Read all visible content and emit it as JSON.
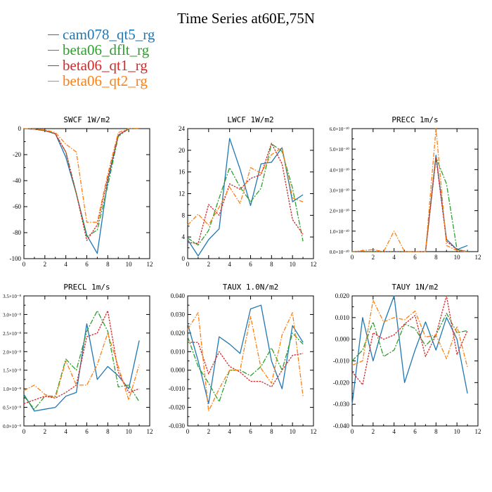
{
  "title": "Time Series at60E,75N",
  "colors": {
    "blue": "#1f77b4",
    "green": "#2ca02c",
    "red": "#d62728",
    "orange": "#ff7f0e"
  },
  "legend": [
    {
      "label": "cam078_qt5_rg",
      "color": "#1f77b4"
    },
    {
      "label": "beta06_dflt_rg",
      "color": "#2ca02c"
    },
    {
      "label": "beta06_qt1_rg",
      "color": "#d62728"
    },
    {
      "label": "beta06_qt2_rg",
      "color": "#ff7f0e"
    }
  ],
  "chart_data": [
    {
      "type": "line",
      "title": "SWCF   1W/m2",
      "x": [
        0,
        1,
        2,
        3,
        4,
        5,
        6,
        7,
        8,
        9,
        10,
        11
      ],
      "xlim": [
        0,
        12
      ],
      "ylim": [
        -100,
        0
      ],
      "xticks": [
        "0",
        "2",
        "4",
        "6",
        "8",
        "10",
        "12"
      ],
      "yticks": [
        "-100",
        "-80",
        "-60",
        "-40",
        "-20",
        "0"
      ],
      "series": [
        {
          "name": "cam078_qt5_rg",
          "values": [
            0,
            -0.5,
            -1.5,
            -4,
            -22,
            -50,
            -82,
            -96,
            -40,
            -5,
            0,
            0
          ]
        },
        {
          "name": "beta06_dflt_rg",
          "values": [
            0,
            -0.5,
            -1.5,
            -4,
            -18,
            -50,
            -83,
            -78,
            -44,
            -6,
            0,
            0
          ]
        },
        {
          "name": "beta06_qt1_rg",
          "values": [
            0,
            -0.5,
            -1.5,
            -4,
            -18,
            -50,
            -86,
            -74,
            -38,
            -5,
            0,
            0
          ]
        },
        {
          "name": "beta06_qt2_rg",
          "values": [
            0,
            -0.3,
            -1,
            -3,
            -12,
            -18,
            -72,
            -72,
            -35,
            -3,
            0,
            0
          ]
        }
      ]
    },
    {
      "type": "line",
      "title": "LWCF   1W/m2",
      "x": [
        0,
        1,
        2,
        3,
        4,
        5,
        6,
        7,
        8,
        9,
        10,
        11
      ],
      "xlim": [
        0,
        12
      ],
      "ylim": [
        0,
        24
      ],
      "xticks": [
        "0",
        "2",
        "4",
        "6",
        "8",
        "10",
        "12"
      ],
      "yticks": [
        "0",
        "4",
        "8",
        "12",
        "16",
        "20",
        "24"
      ],
      "series": [
        {
          "name": "cam078_qt5_rg",
          "values": [
            3.5,
            0.5,
            3.5,
            5.5,
            22.2,
            16.5,
            9.8,
            17.5,
            17.8,
            20.5,
            10.5,
            11.8
          ]
        },
        {
          "name": "beta06_dflt_rg",
          "values": [
            3.8,
            2.5,
            5.2,
            11.2,
            16.8,
            13.2,
            10.5,
            13,
            21.2,
            19.8,
            13,
            3.2
          ]
        },
        {
          "name": "beta06_qt1_rg",
          "values": [
            3,
            2.8,
            10,
            8,
            13.8,
            12.8,
            14.8,
            15.5,
            21.3,
            17.5,
            7.2,
            4.5
          ]
        },
        {
          "name": "beta06_qt2_rg",
          "values": [
            6.2,
            8.2,
            6.2,
            9.5,
            13.2,
            10.2,
            16.8,
            15.8,
            19.2,
            20.5,
            11.2,
            10.5
          ]
        }
      ]
    },
    {
      "type": "line",
      "title": "PRECC   1m/s",
      "x": [
        0,
        1,
        2,
        3,
        4,
        5,
        6,
        7,
        8,
        9,
        10,
        11
      ],
      "xlim": [
        0,
        12
      ],
      "ylim": [
        0,
        6.0
      ],
      "yscale_exp": -10,
      "xticks": [
        "0",
        "2",
        "4",
        "6",
        "8",
        "10",
        "12"
      ],
      "yticks": [
        "0.0×10⁻¹⁰",
        "1.0×10⁻¹⁰",
        "2.0×10⁻¹⁰",
        "3.0×10⁻¹⁰",
        "4.0×10⁻¹⁰",
        "5.0×10⁻¹⁰",
        "6.0×10⁻¹⁰"
      ],
      "series": [
        {
          "name": "cam078_qt5_rg",
          "values": [
            0,
            0,
            0,
            0,
            0,
            0,
            0,
            0,
            4.7,
            0.6,
            0.1,
            0.3
          ]
        },
        {
          "name": "beta06_dflt_rg",
          "values": [
            0,
            0,
            0,
            0,
            0,
            0,
            0,
            0,
            4.6,
            3.3,
            0.1,
            0
          ]
        },
        {
          "name": "beta06_qt1_rg",
          "values": [
            0,
            0,
            0,
            0,
            0,
            0,
            0,
            0,
            4.6,
            0.5,
            0.1,
            0
          ]
        },
        {
          "name": "beta06_qt2_rg",
          "values": [
            0,
            0.05,
            0.1,
            0,
            1.0,
            0,
            0,
            0,
            6.0,
            0.3,
            0.05,
            0
          ]
        }
      ]
    },
    {
      "type": "line",
      "title": "PRECL   1m/s",
      "x": [
        0,
        1,
        2,
        3,
        4,
        5,
        6,
        7,
        8,
        9,
        10,
        11
      ],
      "xlim": [
        0,
        12
      ],
      "ylim": [
        0,
        3.5
      ],
      "yscale_exp": -8,
      "xticks": [
        "0",
        "2",
        "4",
        "6",
        "8",
        "10",
        "12"
      ],
      "yticks": [
        "0.0×10⁻⁸",
        "0.5×10⁻⁸",
        "1.0×10⁻⁸",
        "1.5×10⁻⁸",
        "2.0×10⁻⁸",
        "2.5×10⁻⁸",
        "3.0×10⁻⁸",
        "3.5×10⁻⁸"
      ],
      "series": [
        {
          "name": "cam078_qt5_rg",
          "values": [
            0.85,
            0.4,
            0.45,
            0.5,
            0.8,
            0.9,
            2.75,
            1.25,
            1.6,
            1.35,
            1.0,
            2.3
          ]
        },
        {
          "name": "beta06_dflt_rg",
          "values": [
            0.8,
            0.45,
            0.8,
            0.8,
            1.8,
            1.5,
            2.55,
            3.1,
            2.55,
            1.05,
            1.1,
            0.65
          ]
        },
        {
          "name": "beta06_qt1_rg",
          "values": [
            0.6,
            0.7,
            0.8,
            0.75,
            0.9,
            1.1,
            2.4,
            2.5,
            3.1,
            1.45,
            0.9,
            1.0
          ]
        },
        {
          "name": "beta06_qt2_rg",
          "values": [
            0.95,
            1.1,
            0.85,
            0.75,
            1.75,
            1.1,
            1.1,
            1.65,
            2.5,
            1.6,
            0.7,
            1.65
          ]
        }
      ]
    },
    {
      "type": "line",
      "title": "TAUX   1.0N/m2",
      "x": [
        0,
        1,
        2,
        3,
        4,
        5,
        6,
        7,
        8,
        9,
        10,
        11
      ],
      "xlim": [
        0,
        12
      ],
      "ylim": [
        -0.03,
        0.04
      ],
      "xticks": [
        "0",
        "2",
        "4",
        "6",
        "8",
        "10",
        "12"
      ],
      "yticks": [
        "-0.030",
        "-0.020",
        "-0.010",
        "0.000",
        "0.010",
        "0.020",
        "0.030",
        "0.040"
      ],
      "series": [
        {
          "name": "cam078_qt5_rg",
          "values": [
            0.025,
            0.005,
            -0.018,
            0.018,
            0.014,
            0.009,
            0.033,
            0.035,
            0.005,
            -0.01,
            0.024,
            0.015
          ]
        },
        {
          "name": "beta06_dflt_rg",
          "values": [
            0.018,
            0.002,
            -0.007,
            -0.017,
            0.0,
            0.0,
            -0.003,
            0.002,
            0.012,
            0.0,
            0.02,
            0.014
          ]
        },
        {
          "name": "beta06_qt1_rg",
          "values": [
            0.015,
            0.015,
            -0.002,
            0.01,
            0.002,
            -0.001,
            -0.006,
            -0.006,
            -0.009,
            0.0,
            0.008,
            0.009
          ]
        },
        {
          "name": "beta06_qt2_rg",
          "values": [
            0.022,
            0.031,
            -0.022,
            -0.01,
            0.0,
            0.0,
            0.029,
            0.001,
            -0.007,
            0.019,
            0.031,
            -0.014
          ]
        }
      ]
    },
    {
      "type": "line",
      "title": "TAUY   1N/m2",
      "x": [
        0,
        1,
        2,
        3,
        4,
        5,
        6,
        7,
        8,
        9,
        10,
        11
      ],
      "xlim": [
        0,
        12
      ],
      "ylim": [
        -0.04,
        0.02
      ],
      "xticks": [
        "0",
        "2",
        "4",
        "6",
        "8",
        "10",
        "12"
      ],
      "yticks": [
        "-0.040",
        "-0.030",
        "-0.020",
        "-0.010",
        "0.000",
        "0.010",
        "0.020"
      ],
      "series": [
        {
          "name": "cam078_qt5_rg",
          "values": [
            -0.03,
            0.01,
            -0.01,
            0.007,
            0.02,
            -0.02,
            -0.005,
            0.008,
            -0.005,
            0.01,
            0.0,
            -0.025
          ]
        },
        {
          "name": "beta06_dflt_rg",
          "values": [
            -0.01,
            -0.005,
            0.008,
            -0.008,
            -0.005,
            0.007,
            0.005,
            -0.003,
            0.002,
            0.012,
            0.003,
            0.004
          ]
        },
        {
          "name": "beta06_qt1_rg",
          "values": [
            -0.015,
            -0.021,
            0.003,
            0.0,
            0.002,
            0.007,
            0.011,
            -0.008,
            0.002,
            0.02,
            -0.007,
            0.004
          ]
        },
        {
          "name": "beta06_qt2_rg",
          "values": [
            -0.012,
            -0.01,
            0.018,
            0.008,
            0.01,
            0.009,
            0.013,
            0.001,
            0.002,
            -0.009,
            0.006,
            -0.013
          ]
        }
      ]
    }
  ]
}
